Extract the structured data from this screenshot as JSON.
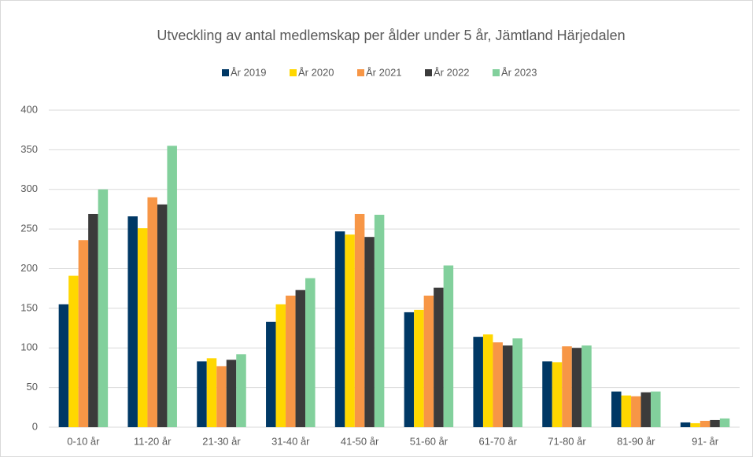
{
  "chart_data": {
    "type": "bar",
    "title": "Utveckling av antal medlemskap per ålder under 5 år, Jämtland Härjedalen",
    "categories": [
      "0-10 år",
      "11-20 år",
      "21-30 år",
      "31-40 år",
      "41-50 år",
      "51-60 år",
      "61-70 år",
      "71-80 år",
      "81-90 år",
      "91- år"
    ],
    "series": [
      {
        "name": "År 2019",
        "color": "#003865",
        "values": [
          155,
          266,
          83,
          133,
          247,
          145,
          114,
          83,
          45,
          6
        ]
      },
      {
        "name": "År 2020",
        "color": "#ffd700",
        "values": [
          191,
          251,
          87,
          155,
          243,
          148,
          117,
          82,
          40,
          5
        ]
      },
      {
        "name": "År 2021",
        "color": "#f79646",
        "values": [
          236,
          290,
          77,
          166,
          269,
          166,
          107,
          102,
          39,
          8
        ]
      },
      {
        "name": "År 2022",
        "color": "#3b3b3b",
        "values": [
          269,
          281,
          85,
          173,
          240,
          176,
          103,
          100,
          44,
          9
        ]
      },
      {
        "name": "År 2023",
        "color": "#82d09c",
        "values": [
          300,
          355,
          92,
          188,
          268,
          204,
          112,
          103,
          45,
          11
        ]
      }
    ],
    "ylim": [
      0,
      400
    ],
    "yticks": [
      0,
      50,
      100,
      150,
      200,
      250,
      300,
      350,
      400
    ],
    "grid": true
  }
}
